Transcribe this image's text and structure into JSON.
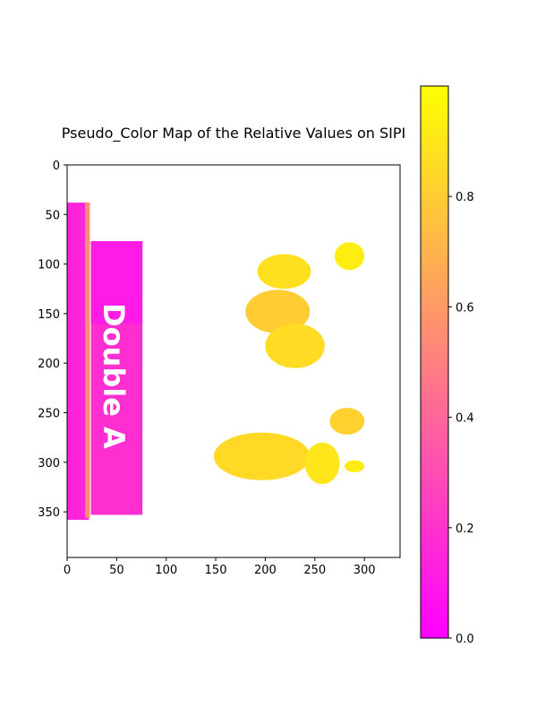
{
  "chart_data": {
    "type": "heatmap",
    "title": "Pseudo_Color Map of the Relative Values on SIPI",
    "xlabel": "",
    "ylabel": "",
    "xlim": [
      0,
      336
    ],
    "ylim": [
      396,
      0
    ],
    "x_ticks": [
      0,
      50,
      100,
      150,
      200,
      250,
      300
    ],
    "y_ticks": [
      0,
      50,
      100,
      150,
      200,
      250,
      300,
      350
    ],
    "image_text": "Double A",
    "colormap": {
      "name": "spring",
      "low_color": "#ff00ff",
      "high_color": "#ffff00",
      "range": [
        0.0,
        1.0
      ],
      "ticks": [
        0.0,
        0.2,
        0.4,
        0.6,
        0.8
      ]
    },
    "regions": [
      {
        "name": "left-strip-outer",
        "x": [
          0,
          22
        ],
        "y": [
          38,
          358
        ],
        "value": 0.14
      },
      {
        "name": "left-strip-edge",
        "x": [
          18,
          23
        ],
        "y": [
          38,
          356
        ],
        "value": 0.55
      },
      {
        "name": "double-a-strip",
        "x": [
          24,
          76
        ],
        "y": [
          77,
          353
        ],
        "value": 0.18
      },
      {
        "name": "double-a-strip-upper",
        "x": [
          24,
          76
        ],
        "y": [
          77,
          160
        ],
        "value": 0.1
      },
      {
        "name": "top-leaf-cluster",
        "x": [
          192,
          246
        ],
        "y": [
          90,
          125
        ],
        "value": 0.88
      },
      {
        "name": "center-leaf",
        "x": [
          180,
          245
        ],
        "y": [
          126,
          170
        ],
        "value": 0.8
      },
      {
        "name": "lower-center-leaf",
        "x": [
          200,
          260
        ],
        "y": [
          160,
          205
        ],
        "value": 0.86
      },
      {
        "name": "top-right-sprig",
        "x": [
          270,
          300
        ],
        "y": [
          78,
          106
        ],
        "value": 0.93
      },
      {
        "name": "bottom-left-branch",
        "x": [
          148,
          245
        ],
        "y": [
          270,
          318
        ],
        "value": 0.85
      },
      {
        "name": "bottom-center-leaf",
        "x": [
          240,
          275
        ],
        "y": [
          280,
          322
        ],
        "value": 0.9
      },
      {
        "name": "bottom-right-leaf",
        "x": [
          265,
          300
        ],
        "y": [
          245,
          272
        ],
        "value": 0.82
      },
      {
        "name": "bottom-right-sprig",
        "x": [
          280,
          300
        ],
        "y": [
          298,
          310
        ],
        "value": 0.92
      }
    ]
  }
}
